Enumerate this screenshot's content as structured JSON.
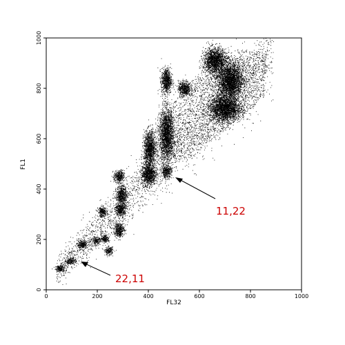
{
  "chart_data": {
    "type": "scatter",
    "title": "",
    "xlabel": "FL32",
    "ylabel": "FL1",
    "xlim": [
      0,
      1000
    ],
    "ylim": [
      0,
      1000
    ],
    "xticks": [
      "0",
      "200",
      "400",
      "600",
      "800",
      "1000"
    ],
    "yticks": [
      "0",
      "200",
      "400",
      "600",
      "800",
      "1000"
    ],
    "grid": false,
    "legend": "none",
    "point_color": "#000000",
    "annotation_color": "#cc0000",
    "clusters": [
      {
        "x": 55,
        "y": 85,
        "sx": 10,
        "sy": 6
      },
      {
        "x": 95,
        "y": 115,
        "sx": 9,
        "sy": 7
      },
      {
        "x": 140,
        "y": 180,
        "sx": 10,
        "sy": 8
      },
      {
        "x": 195,
        "y": 195,
        "sx": 8,
        "sy": 7
      },
      {
        "x": 230,
        "y": 205,
        "sx": 8,
        "sy": 8
      },
      {
        "x": 245,
        "y": 155,
        "sx": 8,
        "sy": 8
      },
      {
        "x": 220,
        "y": 310,
        "sx": 9,
        "sy": 10
      },
      {
        "x": 285,
        "y": 240,
        "sx": 10,
        "sy": 14
      },
      {
        "x": 290,
        "y": 320,
        "sx": 10,
        "sy": 14
      },
      {
        "x": 295,
        "y": 380,
        "sx": 10,
        "sy": 18
      },
      {
        "x": 285,
        "y": 450,
        "sx": 10,
        "sy": 12
      },
      {
        "x": 400,
        "y": 460,
        "sx": 14,
        "sy": 22
      },
      {
        "x": 405,
        "y": 560,
        "sx": 12,
        "sy": 35
      },
      {
        "x": 470,
        "y": 470,
        "sx": 10,
        "sy": 12
      },
      {
        "x": 470,
        "y": 620,
        "sx": 14,
        "sy": 50
      },
      {
        "x": 470,
        "y": 830,
        "sx": 10,
        "sy": 25
      },
      {
        "x": 540,
        "y": 800,
        "sx": 12,
        "sy": 15
      },
      {
        "x": 660,
        "y": 910,
        "sx": 22,
        "sy": 25
      },
      {
        "x": 720,
        "y": 830,
        "sx": 25,
        "sy": 35
      },
      {
        "x": 700,
        "y": 720,
        "sx": 30,
        "sy": 25
      }
    ],
    "annotations": [
      {
        "text": "11,22",
        "point": [
          510,
          440
        ]
      },
      {
        "text": "22,11",
        "point": [
          145,
          105
        ]
      }
    ]
  }
}
